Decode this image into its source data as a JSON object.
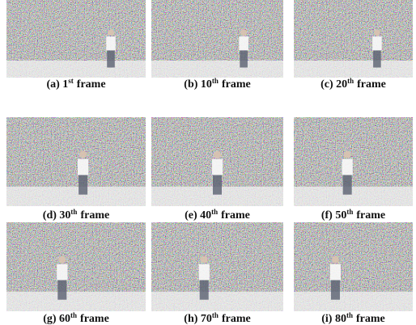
{
  "figure": {
    "panels": [
      {
        "prefix": "(a) 1",
        "sup": "st",
        "suffix": "frame"
      },
      {
        "prefix": "(b) 10",
        "sup": "th",
        "suffix": "frame"
      },
      {
        "prefix": "(c) 20",
        "sup": "th",
        "suffix": "frame"
      },
      {
        "prefix": "(d) 30",
        "sup": "th",
        "suffix": "frame"
      },
      {
        "prefix": "(e) 40",
        "sup": "th",
        "suffix": "frame"
      },
      {
        "prefix": "(f) 50",
        "sup": "th",
        "suffix": "frame"
      },
      {
        "prefix": "(g) 60",
        "sup": "th",
        "suffix": "frame"
      },
      {
        "prefix": "(h) 70",
        "sup": "th",
        "suffix": "frame"
      },
      {
        "prefix": "(i) 80",
        "sup": "th",
        "suffix": "frame"
      }
    ]
  }
}
